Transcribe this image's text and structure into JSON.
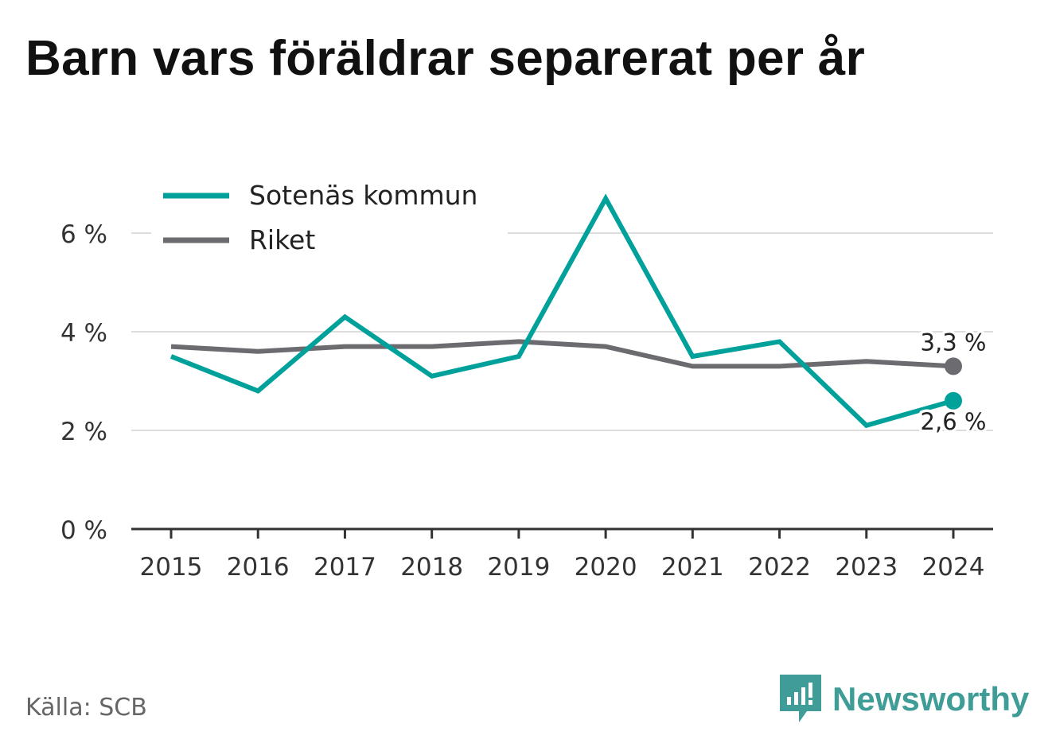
{
  "title": "Barn vars föräldrar separerat per år",
  "source": "Källa: SCB",
  "brand": {
    "name": "Newsworthy",
    "icon": "newsworthy-logo-icon"
  },
  "colors": {
    "primary": "#00A19A",
    "secondary": "#6C6B70",
    "grid": "#DDDDDD",
    "axis": "#333333",
    "brand": "#3F9C97"
  },
  "chart_data": {
    "type": "line",
    "categories": [
      "2015",
      "2016",
      "2017",
      "2018",
      "2019",
      "2020",
      "2021",
      "2022",
      "2023",
      "2024"
    ],
    "series": [
      {
        "name": "Sotenäs kommun",
        "color": "#00A19A",
        "values": [
          3.5,
          2.8,
          4.3,
          3.1,
          3.5,
          6.7,
          3.5,
          3.8,
          2.1,
          2.6
        ],
        "end_label": "2,6 %"
      },
      {
        "name": "Riket",
        "color": "#6C6B70",
        "values": [
          3.7,
          3.6,
          3.7,
          3.7,
          3.8,
          3.7,
          3.3,
          3.3,
          3.4,
          3.3
        ],
        "end_label": "3,3 %"
      }
    ],
    "yticks": [
      {
        "value": 0,
        "label": "0 %"
      },
      {
        "value": 2,
        "label": "2 %"
      },
      {
        "value": 4,
        "label": "4 %"
      },
      {
        "value": 6,
        "label": "6 %"
      }
    ],
    "ylim": [
      0,
      7
    ],
    "grid": true,
    "legend_position": "top-left"
  }
}
